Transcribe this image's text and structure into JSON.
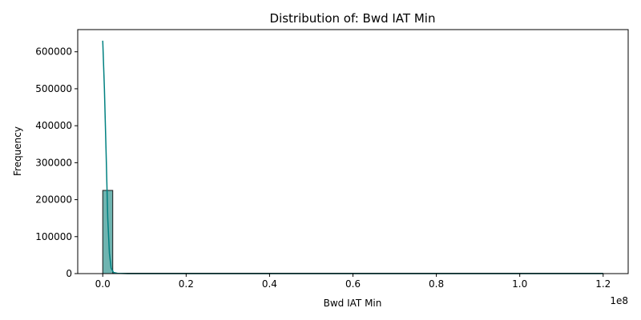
{
  "chart_data": {
    "type": "bar",
    "title": "Distribution of: Bwd IAT Min",
    "xlabel": "Bwd IAT Min",
    "ylabel": "Frequency",
    "x_offset_label": "1e8",
    "xlim": [
      -6000000,
      126000000
    ],
    "ylim": [
      0,
      660000
    ],
    "x_ticks": [
      0,
      0.2,
      0.4,
      0.6,
      0.8,
      1.0,
      1.2
    ],
    "x_tick_labels": [
      "0.0",
      "0.2",
      "0.4",
      "0.6",
      "0.8",
      "1.0",
      "1.2"
    ],
    "y_ticks": [
      0,
      100000,
      200000,
      300000,
      400000,
      500000,
      600000
    ],
    "y_tick_labels": [
      "0",
      "100000",
      "200000",
      "300000",
      "400000",
      "500000",
      "600000"
    ],
    "bins": [
      {
        "x0": 0,
        "x1": 2400000,
        "count": 225000
      }
    ],
    "kde": {
      "x": [
        0,
        400000,
        800000,
        1200000,
        1600000,
        2000000,
        2600000,
        3500000,
        6000000,
        20000000,
        60000000,
        120000000
      ],
      "y": [
        630000,
        500000,
        330000,
        150000,
        55000,
        15000,
        3000,
        800,
        0,
        0,
        0,
        0
      ]
    },
    "grid": false,
    "legend": "none",
    "colors": {
      "bar_fill": "#6fb4b0",
      "bar_edge": "#1a1a1a",
      "kde_line": "#008080"
    }
  }
}
